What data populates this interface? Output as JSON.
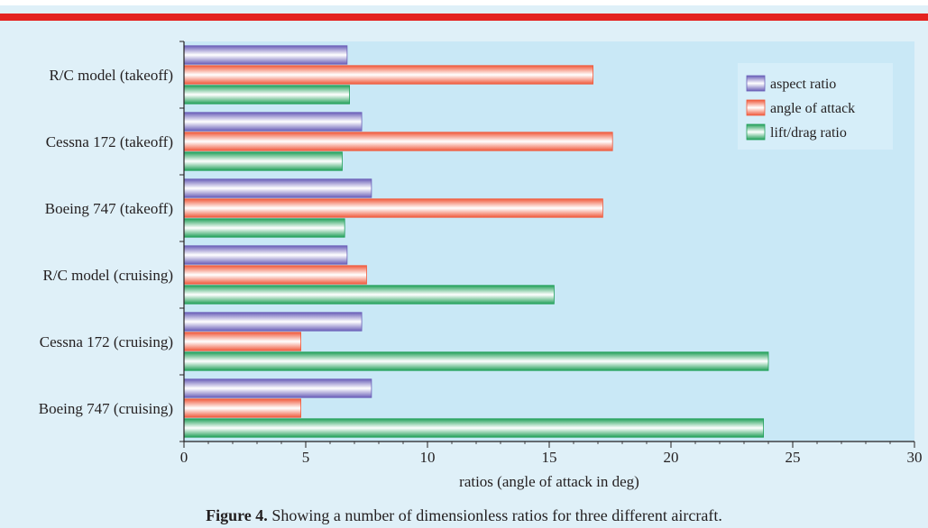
{
  "colors": {
    "page_bg": "#dff0f8",
    "plot_bg": "#c9e8f6",
    "accent_bar": "#e42320",
    "aspect_ratio": "#6a5fb8",
    "angle_of_attack": "#f05a3c",
    "lift_drag_ratio": "#22a05a"
  },
  "caption": {
    "label": "Figure 4.",
    "text": " Showing a number of dimensionless ratios for three different aircraft."
  },
  "chart_data": {
    "type": "bar",
    "orientation": "horizontal",
    "categories": [
      "R/C model (takeoff)",
      "Cessna 172 (takeoff)",
      "Boeing 747 (takeoff)",
      "R/C model (cruising)",
      "Cessna 172 (cruising)",
      "Boeing 747 (cruising)"
    ],
    "series": [
      {
        "name": "aspect ratio",
        "values": [
          6.7,
          7.3,
          7.7,
          6.7,
          7.3,
          7.7
        ]
      },
      {
        "name": "angle of attack",
        "values": [
          16.8,
          17.6,
          17.2,
          7.5,
          4.8,
          4.8
        ]
      },
      {
        "name": "lift/drag ratio",
        "values": [
          6.8,
          6.5,
          6.6,
          15.2,
          24.0,
          23.8
        ]
      }
    ],
    "xlabel": "ratios (angle of attack in deg)",
    "xlim": [
      0,
      30
    ],
    "xticks": [
      0,
      5,
      10,
      15,
      20,
      25,
      30
    ],
    "legend_position": "top-right",
    "grid": false
  }
}
